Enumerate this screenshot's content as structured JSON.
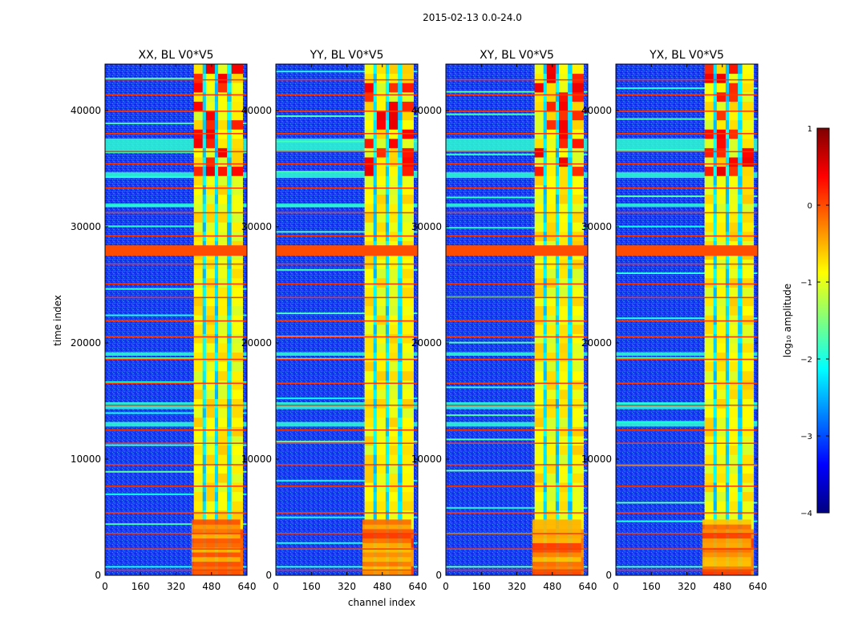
{
  "figure": {
    "suptitle": "2015-02-13 0.0-24.0",
    "xlabel": "channel index",
    "ylabel": "time index"
  },
  "colorbar": {
    "label": "log₁₀ amplitude",
    "min": -4,
    "max": 1,
    "ticks": [
      "1",
      "0",
      "−1",
      "−2",
      "−3",
      "−4"
    ],
    "tick_values": [
      1,
      0,
      -1,
      -2,
      -3,
      -4
    ],
    "colormap": "jet",
    "colormap_stops": [
      "#00007f",
      "#0000ff",
      "#007fff",
      "#00ffff",
      "#7fff7f",
      "#ffff00",
      "#ff7f00",
      "#ff0000",
      "#7f0000"
    ]
  },
  "chart_data": [
    {
      "type": "heatmap",
      "title": "XX, BL V0*V5",
      "xlim": [
        0,
        640
      ],
      "ylim": [
        0,
        44000
      ],
      "xticks": [
        0,
        160,
        320,
        480,
        640
      ],
      "xticklabels": [
        "0",
        "160",
        "320",
        "480",
        "640"
      ],
      "yticks": [
        0,
        10000,
        20000,
        30000,
        40000
      ],
      "yticklabels": [
        "0",
        "10000",
        "20000",
        "30000",
        "40000"
      ],
      "background_log_amplitude": -3.2,
      "bright_band_channels": [
        400,
        620
      ],
      "saturated_time_band": [
        27500,
        28400
      ]
    },
    {
      "type": "heatmap",
      "title": "YY, BL V0*V5",
      "xlim": [
        0,
        640
      ],
      "ylim": [
        0,
        44000
      ],
      "xticks": [
        0,
        160,
        320,
        480,
        640
      ],
      "xticklabels": [
        "0",
        "160",
        "320",
        "480",
        "640"
      ],
      "yticks": [
        0,
        10000,
        20000,
        30000,
        40000
      ],
      "yticklabels": [
        "0",
        "10000",
        "20000",
        "30000",
        "40000"
      ],
      "background_log_amplitude": -3.2,
      "bright_band_channels": [
        400,
        620
      ],
      "saturated_time_band": [
        27500,
        28400
      ]
    },
    {
      "type": "heatmap",
      "title": "XY, BL V0*V5",
      "xlim": [
        0,
        640
      ],
      "ylim": [
        0,
        44000
      ],
      "xticks": [
        0,
        160,
        320,
        480,
        640
      ],
      "xticklabels": [
        "0",
        "160",
        "320",
        "480",
        "640"
      ],
      "yticks": [
        0,
        10000,
        20000,
        30000,
        40000
      ],
      "yticklabels": [
        "0",
        "10000",
        "20000",
        "30000",
        "40000"
      ],
      "background_log_amplitude": -3.2,
      "bright_band_channels": [
        400,
        620
      ],
      "saturated_time_band": [
        27500,
        28400
      ]
    },
    {
      "type": "heatmap",
      "title": "YX, BL V0*V5",
      "xlim": [
        0,
        640
      ],
      "ylim": [
        0,
        44000
      ],
      "xticks": [
        0,
        160,
        320,
        480,
        640
      ],
      "xticklabels": [
        "0",
        "160",
        "320",
        "480",
        "640"
      ],
      "yticks": [
        0,
        10000,
        20000,
        30000,
        40000
      ],
      "yticklabels": [
        "0",
        "10000",
        "20000",
        "30000",
        "40000"
      ],
      "background_log_amplitude": -3.2,
      "bright_band_channels": [
        400,
        620
      ],
      "saturated_time_band": [
        27500,
        28400
      ]
    }
  ]
}
